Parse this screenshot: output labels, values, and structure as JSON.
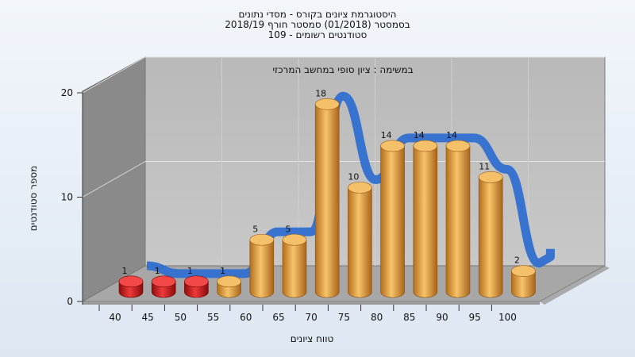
{
  "chart_data": {
    "type": "bar",
    "title_lines": [
      "היסטוגרמת ציונים בקורס - מסדי נתונים",
      "בסמסטר  (01/2018)  סמסטר חורף 2018/19",
      "סטודנטים רשומים - 109"
    ],
    "subtitle": "במשימה : ציון סופי במחשב המרכזי",
    "xlabel": "טווח ציונים",
    "ylabel": "מספר סטודנטים",
    "ylim": [
      0,
      20
    ],
    "yticks": [
      0,
      10,
      20
    ],
    "categories": [
      "40",
      "45",
      "50",
      "55",
      "60",
      "65",
      "70",
      "75",
      "80",
      "85",
      "90",
      "95",
      "100"
    ],
    "values": [
      1,
      1,
      1,
      1,
      5,
      5,
      18,
      10,
      14,
      14,
      14,
      11,
      2
    ],
    "bar_colors": [
      "#d41c1c",
      "#d41c1c",
      "#d41c1c",
      "#e8a23c",
      "#e8a23c",
      "#e8a23c",
      "#e8a23c",
      "#e8a23c",
      "#e8a23c",
      "#e8a23c",
      "#e8a23c",
      "#e8a23c",
      "#e8a23c"
    ],
    "trend_ribbon_color": "#2f6fd0",
    "grid": true
  }
}
